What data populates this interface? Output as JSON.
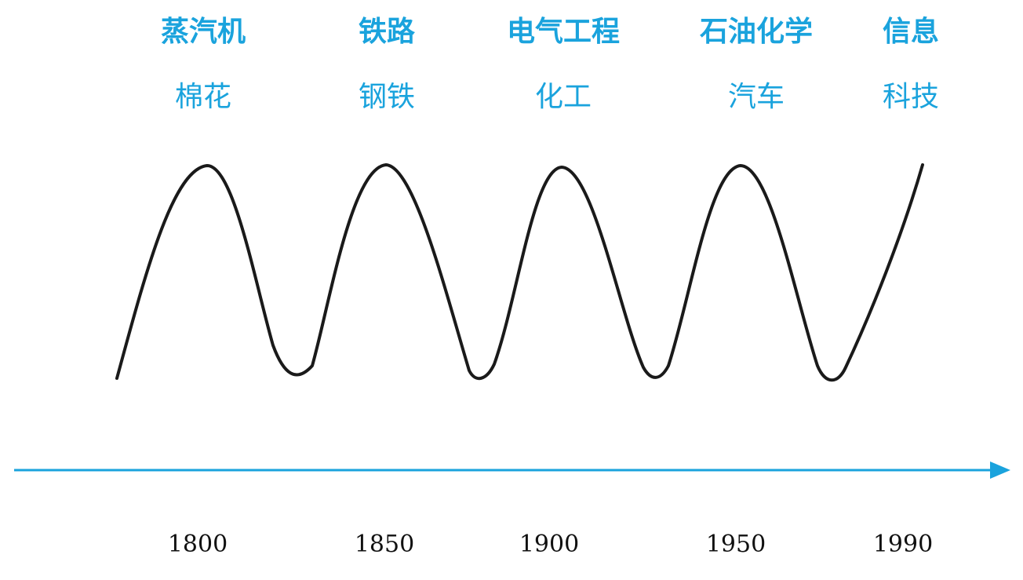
{
  "colors": {
    "accent": "#1aa3dd",
    "wave": "#1a1a1a",
    "year_text": "#111111"
  },
  "waves": [
    {
      "technology": "蒸汽机",
      "industry": "棉花",
      "year": "1800"
    },
    {
      "technology": "铁路",
      "industry": "钢铁",
      "year": "1850"
    },
    {
      "technology": "电气工程",
      "industry": "化工",
      "year": "1900"
    },
    {
      "technology": "石油化学",
      "industry": "汽车",
      "year": "1950"
    },
    {
      "technology": "信息",
      "industry": "科技",
      "year": "1990"
    }
  ]
}
